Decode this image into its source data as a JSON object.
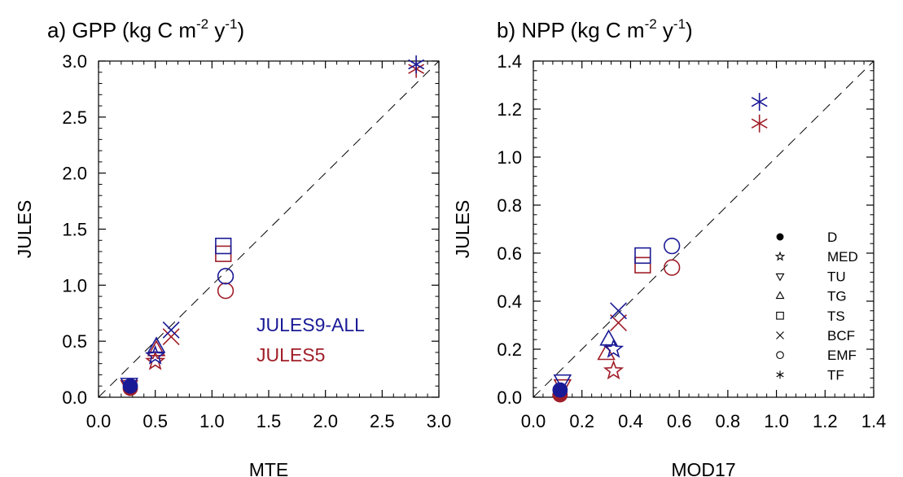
{
  "colors": {
    "jules9": "#1a1a96",
    "jules5": "#a01e28",
    "axis": "#000000",
    "bg": "#ffffff"
  },
  "legend": {
    "series": [
      "JULES9-ALL",
      "JULES5"
    ],
    "biomes": [
      {
        "label": "D",
        "marker": "filled-circle"
      },
      {
        "label": "MED",
        "marker": "star"
      },
      {
        "label": "TU",
        "marker": "down-triangle"
      },
      {
        "label": "TG",
        "marker": "up-triangle"
      },
      {
        "label": "TS",
        "marker": "square"
      },
      {
        "label": "BCF",
        "marker": "x-cross"
      },
      {
        "label": "EMF",
        "marker": "circle"
      },
      {
        "label": "TF",
        "marker": "asterisk"
      }
    ]
  },
  "chart_data": [
    {
      "type": "scatter",
      "title_main": "a) GPP (kg C m",
      "title_sup1": "-2",
      "title_mid": " y",
      "title_sup2": "-1",
      "title_end": ")",
      "xlabel": "MTE",
      "ylabel": "JULES",
      "xlim": [
        0.0,
        3.0
      ],
      "ylim": [
        0.0,
        3.0
      ],
      "xticks": [
        "0.0",
        "0.5",
        "1.0",
        "1.5",
        "2.0",
        "2.5",
        "3.0"
      ],
      "yticks": [
        "0.0",
        "0.5",
        "1.0",
        "1.5",
        "2.0",
        "2.5",
        "3.0"
      ],
      "one_to_one_line": true,
      "legend_location": "lower-right",
      "series": [
        {
          "name": "JULES9-ALL",
          "color": "#1a1a96",
          "points": [
            {
              "biome": "D",
              "x": 0.28,
              "y": 0.1
            },
            {
              "biome": "MED",
              "x": 0.5,
              "y": 0.37
            },
            {
              "biome": "TU",
              "x": 0.27,
              "y": 0.12
            },
            {
              "biome": "TG",
              "x": 0.51,
              "y": 0.45
            },
            {
              "biome": "TS",
              "x": 1.1,
              "y": 1.35
            },
            {
              "biome": "BCF",
              "x": 0.64,
              "y": 0.6
            },
            {
              "biome": "EMF",
              "x": 1.12,
              "y": 1.08
            },
            {
              "biome": "TF",
              "x": 2.8,
              "y": 2.97
            }
          ]
        },
        {
          "name": "JULES5",
          "color": "#a01e28",
          "points": [
            {
              "biome": "D",
              "x": 0.28,
              "y": 0.08
            },
            {
              "biome": "MED",
              "x": 0.5,
              "y": 0.32
            },
            {
              "biome": "TU",
              "x": 0.27,
              "y": 0.1
            },
            {
              "biome": "TG",
              "x": 0.51,
              "y": 0.42
            },
            {
              "biome": "TS",
              "x": 1.1,
              "y": 1.28
            },
            {
              "biome": "BCF",
              "x": 0.64,
              "y": 0.54
            },
            {
              "biome": "EMF",
              "x": 1.12,
              "y": 0.95
            },
            {
              "biome": "TF",
              "x": 2.8,
              "y": 2.93
            }
          ]
        }
      ]
    },
    {
      "type": "scatter",
      "title_main": "b) NPP (kg C m",
      "title_sup1": "-2",
      "title_mid": " y",
      "title_sup2": "-1",
      "title_end": ")",
      "xlabel": "MOD17",
      "ylabel": "JULES",
      "xlim": [
        0.0,
        1.4
      ],
      "ylim": [
        0.0,
        1.4
      ],
      "xticks": [
        "0.0",
        "0.2",
        "0.4",
        "0.6",
        "0.8",
        "1.0",
        "1.2",
        "1.4"
      ],
      "yticks": [
        "0.0",
        "0.2",
        "0.4",
        "0.6",
        "0.8",
        "1.0",
        "1.2",
        "1.4"
      ],
      "one_to_one_line": true,
      "legend_location": "lower-right",
      "series": [
        {
          "name": "JULES9-ALL",
          "color": "#1a1a96",
          "points": [
            {
              "biome": "D",
              "x": 0.11,
              "y": 0.03
            },
            {
              "biome": "MED",
              "x": 0.33,
              "y": 0.2
            },
            {
              "biome": "TU",
              "x": 0.12,
              "y": 0.07
            },
            {
              "biome": "TG",
              "x": 0.31,
              "y": 0.24
            },
            {
              "biome": "TS",
              "x": 0.45,
              "y": 0.59
            },
            {
              "biome": "BCF",
              "x": 0.35,
              "y": 0.36
            },
            {
              "biome": "EMF",
              "x": 0.57,
              "y": 0.63
            },
            {
              "biome": "TF",
              "x": 0.93,
              "y": 1.23
            }
          ]
        },
        {
          "name": "JULES5",
          "color": "#a01e28",
          "points": [
            {
              "biome": "D",
              "x": 0.11,
              "y": 0.01
            },
            {
              "biome": "MED",
              "x": 0.33,
              "y": 0.11
            },
            {
              "biome": "TU",
              "x": 0.12,
              "y": 0.05
            },
            {
              "biome": "TG",
              "x": 0.3,
              "y": 0.18
            },
            {
              "biome": "TS",
              "x": 0.45,
              "y": 0.55
            },
            {
              "biome": "BCF",
              "x": 0.35,
              "y": 0.31
            },
            {
              "biome": "EMF",
              "x": 0.57,
              "y": 0.54
            },
            {
              "biome": "TF",
              "x": 0.93,
              "y": 1.14
            }
          ]
        }
      ]
    }
  ]
}
